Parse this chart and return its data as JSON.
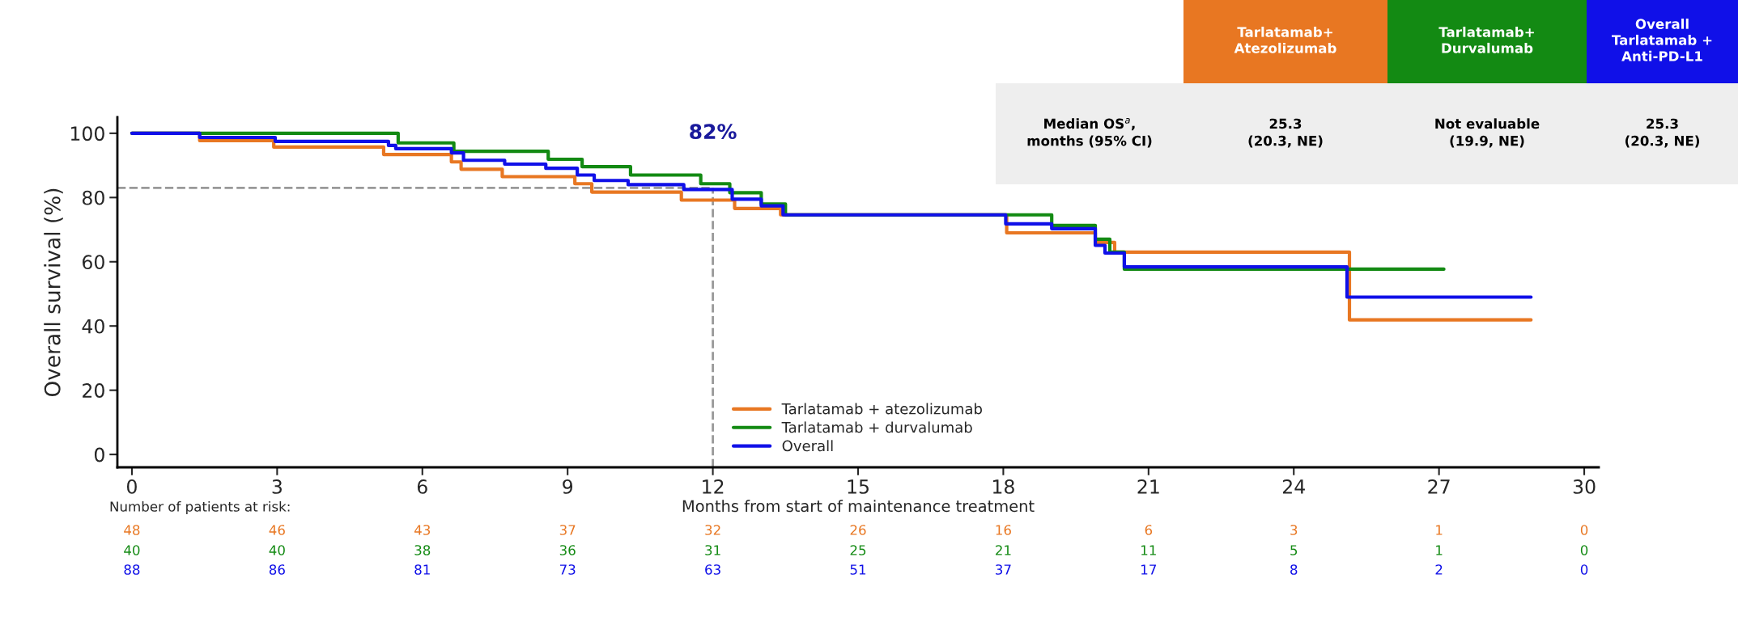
{
  "chart_data": {
    "type": "step",
    "xlabel": "Months from start of maintenance treatment",
    "ylabel": "Overall survival (%)",
    "xlim": [
      -0.3,
      30.3
    ],
    "ylim": [
      -4,
      105
    ],
    "xticks": [
      0,
      3,
      6,
      9,
      12,
      15,
      18,
      21,
      24,
      27,
      30
    ],
    "yticks": [
      0,
      20,
      40,
      60,
      80,
      100
    ],
    "grid": false,
    "legend": "bottom",
    "line_style": "solid",
    "marker": "none",
    "series": [
      {
        "name": "Tarlatamab + atezolizumab",
        "color": "#e87722",
        "x": [
          0,
          1.4,
          2.93,
          5.2,
          6.6,
          6.8,
          7.65,
          9.15,
          9.5,
          11.35,
          12.45,
          13.4,
          18.07,
          19.9,
          20.3,
          25.15,
          28.9
        ],
        "values": [
          100,
          97.7,
          95.7,
          93.4,
          91.1,
          88.8,
          86.5,
          84.3,
          81.7,
          79.2,
          76.6,
          74.6,
          69,
          66,
          63,
          41.9,
          41.9
        ]
      },
      {
        "name": "Tarlatamab + durvalumab",
        "color": "#138a13",
        "x": [
          0,
          5.5,
          6.65,
          8.6,
          9.3,
          10.3,
          11.75,
          12.35,
          13.0,
          13.5,
          19.0,
          19.9,
          20.2,
          20.5,
          27.1
        ],
        "values": [
          100,
          97,
          94.4,
          91.9,
          89.6,
          87,
          84.3,
          81.5,
          78,
          74.6,
          71.3,
          67,
          63,
          57.7,
          57.7
        ]
      },
      {
        "name": "Overall",
        "color": "#1010e8",
        "x": [
          0,
          1.4,
          2.96,
          5.3,
          5.45,
          6.6,
          6.85,
          7.7,
          8.55,
          9.2,
          9.55,
          10.25,
          11.4,
          12.4,
          13.0,
          13.45,
          18.05,
          19.0,
          19.9,
          20.1,
          20.5,
          25.1,
          28.9
        ],
        "values": [
          100,
          98.7,
          97.5,
          96.2,
          95.2,
          93.9,
          91.6,
          90.4,
          89.1,
          87,
          85.3,
          84,
          82.5,
          79.5,
          77.4,
          74.6,
          71.8,
          70.3,
          65.1,
          62.7,
          58.4,
          49,
          49
        ]
      }
    ],
    "ref_lines": [
      {
        "axis": "x",
        "value": 12,
        "color": "#999999",
        "line_style": "dashed"
      },
      {
        "axis": "y",
        "value": 83,
        "color": "#999999",
        "line_style": "dashed"
      }
    ],
    "annotations": [
      "82%",
      "Tarlatamab+\nAtezolizumab",
      "Tarlatamab+\nDurvalumab",
      "Overall\nTarlatamab +\nAnti-PD-L1",
      "Median OS$^{a}$,\nmonths (95% CI)",
      "25.3\n(20.3, NE)",
      "Not evaluable\n(19.9, NE)",
      "25.3\n(20.3, NE)",
      "Number of patients at risk:",
      "48",
      "46",
      "43",
      "37",
      "32",
      "26",
      "16",
      "6",
      "3",
      "1",
      "0",
      "40",
      "40",
      "38",
      "36",
      "31",
      "25",
      "21",
      "11",
      "5",
      "1",
      "0",
      "88",
      "86",
      "81",
      "73",
      "63",
      "51",
      "37",
      "17",
      "8",
      "2",
      "0"
    ]
  }
}
